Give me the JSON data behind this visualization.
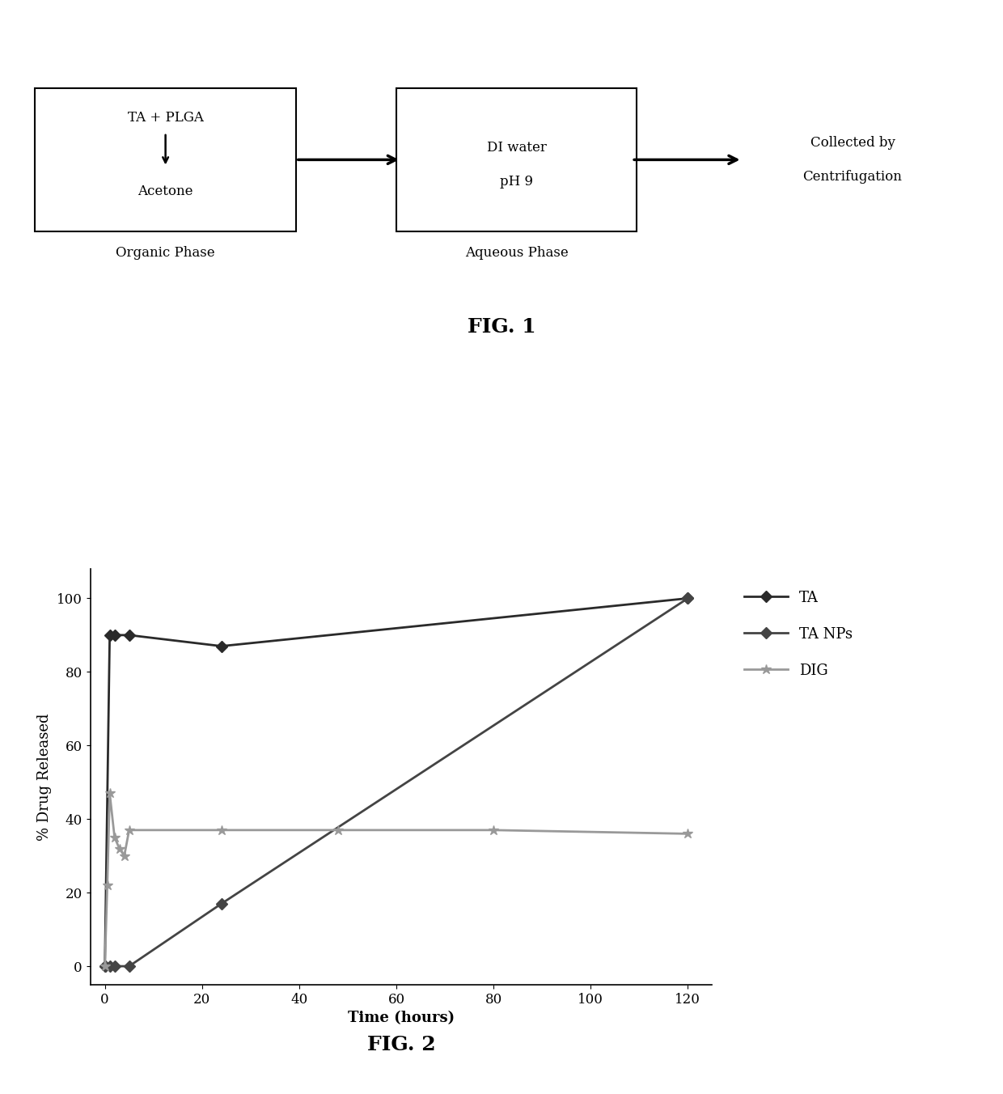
{
  "fig1": {
    "box1_label": "Organic Phase",
    "box2_label": "Aqueous Phase",
    "box3_text": "Collected by\nCentrifugation",
    "fig_label": "FIG. 1"
  },
  "fig2": {
    "TA_x": [
      0,
      1,
      2,
      5,
      24,
      120
    ],
    "TA_y": [
      0,
      90,
      90,
      90,
      87,
      100
    ],
    "TA_NPs_x": [
      0,
      1,
      2,
      5,
      24,
      120
    ],
    "TA_NPs_y": [
      0,
      0,
      0,
      0,
      17,
      100
    ],
    "DIG_x": [
      0,
      0.5,
      1,
      2,
      3,
      4,
      5,
      24,
      48,
      80,
      120
    ],
    "DIG_y": [
      0,
      22,
      47,
      35,
      32,
      30,
      37,
      37,
      37,
      37,
      36
    ],
    "xlabel": "Time (hours)",
    "ylabel": "% Drug Released",
    "xlim": [
      -3,
      125
    ],
    "ylim": [
      -5,
      108
    ],
    "xticks": [
      0,
      20,
      40,
      60,
      80,
      100,
      120
    ],
    "yticks": [
      0,
      20,
      40,
      60,
      80,
      100
    ],
    "legend_labels": [
      "TA",
      "TA NPs",
      "DIG"
    ],
    "fig_label": "FIG. 2",
    "ta_color": "#2a2a2a",
    "tanps_color": "#444444",
    "dig_color": "#999999"
  }
}
